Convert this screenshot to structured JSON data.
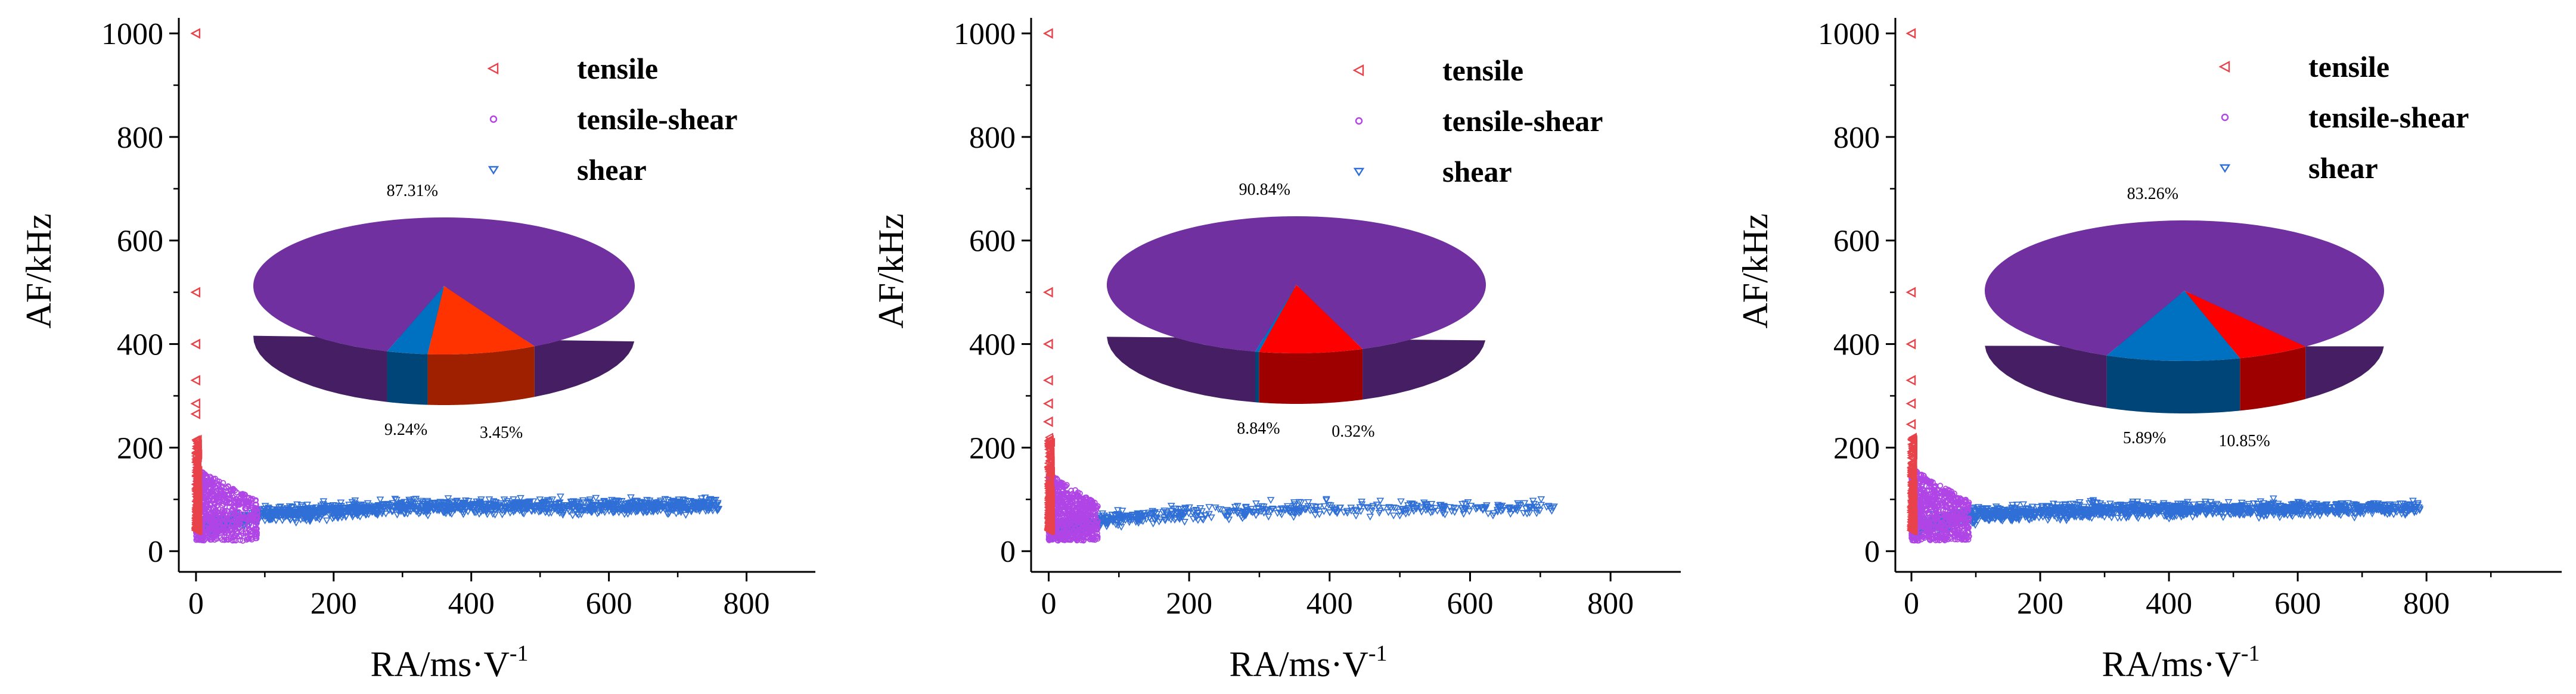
{
  "chart_data": [
    {
      "type": "scatter",
      "xlabel": "RA/ms·V",
      "xlabel_sup": "-1",
      "ylabel": "AF/kHz",
      "xlim": [
        -25,
        900
      ],
      "ylim": [
        -40,
        1030
      ],
      "xticks": [
        0,
        200,
        400,
        600,
        800
      ],
      "yticks": [
        0,
        200,
        400,
        600,
        800,
        1000
      ],
      "legend": [
        {
          "name": "tensile",
          "marker": "left-triangle",
          "color": "#e8424a"
        },
        {
          "name": "tensile-shear",
          "marker": "circle",
          "color": "#b045e6"
        },
        {
          "name": "shear",
          "marker": "down-triangle",
          "color": "#2f6fd6"
        }
      ],
      "scatter_summary": {
        "tensile": {
          "ra_range": [
            0,
            4
          ],
          "af_range": [
            40,
            1000
          ],
          "outliers_af": [
            1000,
            500,
            400,
            330,
            285,
            265
          ]
        },
        "tensile-shear": {
          "ra_range": [
            0,
            90
          ],
          "af_range": [
            20,
            160
          ]
        },
        "shear": {
          "ra_range": [
            5,
            760
          ],
          "af_range": [
            10,
            120
          ],
          "af_trend": [
            [
              10,
              45
            ],
            [
              100,
              70
            ],
            [
              300,
              85
            ],
            [
              760,
              88
            ]
          ]
        }
      },
      "inset_pie": {
        "type": "pie",
        "slices": [
          {
            "name": "tensile-shear",
            "value": 87.31,
            "label": "87.31%",
            "color": "#7030a0"
          },
          {
            "name": "tensile",
            "value": 9.24,
            "label": "9.24%",
            "color": "#ff3300"
          },
          {
            "name": "shear",
            "value": 3.45,
            "label": "3.45%",
            "color": "#0070c0"
          }
        ]
      }
    },
    {
      "type": "scatter",
      "xlabel": "RA/ms·V",
      "xlabel_sup": "-1",
      "ylabel": "AF/kHz",
      "xlim": [
        -25,
        900
      ],
      "ylim": [
        -40,
        1030
      ],
      "xticks": [
        0,
        200,
        400,
        600,
        800
      ],
      "yticks": [
        0,
        200,
        400,
        600,
        800,
        1000
      ],
      "legend": [
        {
          "name": "tensile",
          "marker": "left-triangle",
          "color": "#e8424a"
        },
        {
          "name": "tensile-shear",
          "marker": "circle",
          "color": "#b045e6"
        },
        {
          "name": "shear",
          "marker": "down-triangle",
          "color": "#2f6fd6"
        }
      ],
      "scatter_summary": {
        "tensile": {
          "ra_range": [
            0,
            4
          ],
          "af_range": [
            40,
            1000
          ],
          "outliers_af": [
            1000,
            500,
            400,
            330,
            285,
            250
          ]
        },
        "tensile-shear": {
          "ra_range": [
            0,
            70
          ],
          "af_range": [
            20,
            150
          ]
        },
        "shear": {
          "ra_range": [
            5,
            730
          ],
          "af_range": [
            10,
            130
          ],
          "af_trend": [
            [
              10,
              40
            ],
            [
              100,
              65
            ],
            [
              300,
              80
            ],
            [
              730,
              85
            ]
          ]
        }
      },
      "inset_pie": {
        "type": "pie",
        "slices": [
          {
            "name": "tensile-shear",
            "value": 90.84,
            "label": "90.84%",
            "color": "#7030a0"
          },
          {
            "name": "tensile",
            "value": 8.84,
            "label": "8.84%",
            "color": "#ff0000"
          },
          {
            "name": "shear",
            "value": 0.32,
            "label": "0.32%",
            "color": "#0070c0"
          }
        ]
      }
    },
    {
      "type": "scatter",
      "xlabel": "RA/ms·V",
      "xlabel_sup": "-1",
      "ylabel": "AF/kHz",
      "xlim": [
        -25,
        1010
      ],
      "ylim": [
        -40,
        1030
      ],
      "xticks": [
        0,
        200,
        400,
        600,
        800
      ],
      "yticks": [
        0,
        200,
        400,
        600,
        800,
        1000
      ],
      "legend": [
        {
          "name": "tensile",
          "marker": "left-triangle",
          "color": "#e8424a"
        },
        {
          "name": "tensile-shear",
          "marker": "circle",
          "color": "#b045e6"
        },
        {
          "name": "shear",
          "marker": "down-triangle",
          "color": "#2f6fd6"
        }
      ],
      "scatter_summary": {
        "tensile": {
          "ra_range": [
            0,
            4
          ],
          "af_range": [
            40,
            1000
          ],
          "outliers_af": [
            1000,
            500,
            400,
            330,
            285,
            245
          ]
        },
        "tensile-shear": {
          "ra_range": [
            0,
            90
          ],
          "af_range": [
            20,
            160
          ]
        },
        "shear": {
          "ra_range": [
            5,
            790
          ],
          "af_range": [
            10,
            120
          ],
          "af_trend": [
            [
              10,
              45
            ],
            [
              100,
              70
            ],
            [
              300,
              80
            ],
            [
              790,
              82
            ]
          ]
        }
      },
      "inset_pie": {
        "type": "pie",
        "slices": [
          {
            "name": "tensile-shear",
            "value": 83.26,
            "label": "83.26%",
            "color": "#7030a0"
          },
          {
            "name": "tensile",
            "value": 5.89,
            "label": "5.89%",
            "color": "#ff0000"
          },
          {
            "name": "shear",
            "value": 10.85,
            "label": "10.85%",
            "color": "#0070c0"
          }
        ]
      }
    }
  ]
}
